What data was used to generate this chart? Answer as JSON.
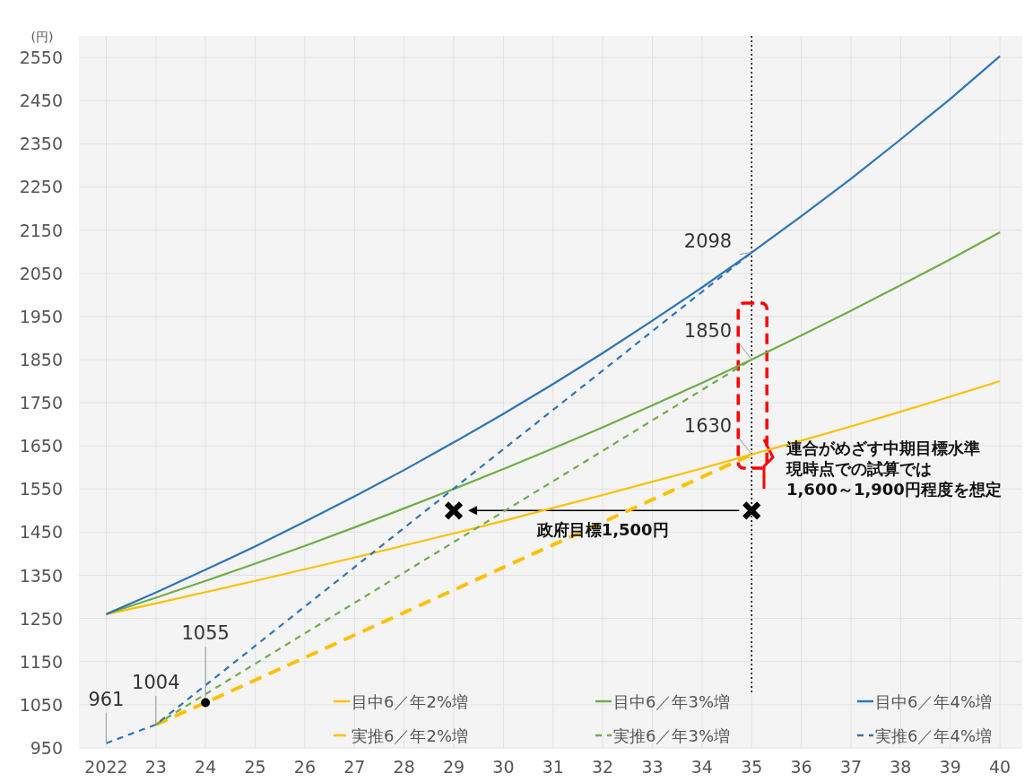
{
  "chart_data": {
    "type": "line",
    "ylabel": "(円)",
    "xlim": [
      2021.45,
      2040.45
    ],
    "ylim": [
      950,
      2600
    ],
    "xticks": [
      {
        "value": 2022,
        "label": "2022"
      },
      {
        "value": 2023,
        "label": "23"
      },
      {
        "value": 2024,
        "label": "24"
      },
      {
        "value": 2025,
        "label": "25"
      },
      {
        "value": 2026,
        "label": "26"
      },
      {
        "value": 2027,
        "label": "27"
      },
      {
        "value": 2028,
        "label": "28"
      },
      {
        "value": 2029,
        "label": "29"
      },
      {
        "value": 2030,
        "label": "30"
      },
      {
        "value": 2031,
        "label": "31"
      },
      {
        "value": 2032,
        "label": "32"
      },
      {
        "value": 2033,
        "label": "33"
      },
      {
        "value": 2034,
        "label": "34"
      },
      {
        "value": 2035,
        "label": "35"
      },
      {
        "value": 2036,
        "label": "36"
      },
      {
        "value": 2037,
        "label": "37"
      },
      {
        "value": 2038,
        "label": "38"
      },
      {
        "value": 2039,
        "label": "39"
      },
      {
        "value": 2040,
        "label": "40"
      }
    ],
    "yticks": [
      950,
      1050,
      1150,
      1250,
      1350,
      1450,
      1550,
      1650,
      1750,
      1850,
      1950,
      2050,
      2150,
      2250,
      2350,
      2450,
      2550
    ],
    "grid": true,
    "legend": "bottom right",
    "marker": "none",
    "x": [
      2022,
      2023,
      2024,
      2025,
      2026,
      2027,
      2028,
      2029,
      2030,
      2031,
      2032,
      2033,
      2034,
      2035,
      2036,
      2037,
      2038,
      2039,
      2040
    ],
    "series": [
      {
        "name": "目中6／年2%増",
        "color": "#ffc000",
        "line_style": "solid",
        "values": [
          1260,
          1285,
          1311,
          1337,
          1364,
          1391,
          1419,
          1447,
          1476,
          1506,
          1536,
          1567,
          1598,
          1630,
          1662,
          1695,
          1729,
          1764,
          1800
        ]
      },
      {
        "name": "目中6／年3%増",
        "color": "#70ad47",
        "line_style": "solid",
        "values": [
          1260,
          1298,
          1337,
          1377,
          1418,
          1461,
          1505,
          1550,
          1596,
          1644,
          1693,
          1744,
          1796,
          1850,
          1906,
          1963,
          2022,
          2082,
          2145
        ]
      },
      {
        "name": "目中6／年4%増",
        "color": "#2e75b6",
        "line_style": "solid",
        "values": [
          1260,
          1310,
          1363,
          1417,
          1474,
          1533,
          1594,
          1658,
          1724,
          1793,
          1865,
          1940,
          2017,
          2098,
          2182,
          2269,
          2360,
          2454,
          2553
        ]
      },
      {
        "name": "実推6／年2%増",
        "color": "#ffc000",
        "line_style": "dashed",
        "x": [
          2023,
          2024,
          2029,
          2035
        ],
        "values": [
          1004,
          1055,
          1316,
          1630
        ]
      },
      {
        "name": "実推6／年3%増",
        "color": "#70ad47",
        "line_style": "dashed",
        "x": [
          2023,
          2029,
          2035
        ],
        "values": [
          1004,
          1427,
          1850
        ]
      },
      {
        "name": "実推6／年4%増",
        "color": "#2e75b6",
        "line_style": "dashed",
        "x": [
          2022,
          2023,
          2029,
          2035
        ],
        "values": [
          961,
          1004,
          1551,
          2098
        ]
      },
      {
        "type": "scatter",
        "marker": "cross",
        "color": "#000000",
        "x": [
          2029,
          2035
        ],
        "values": [
          1500,
          1500
        ]
      }
    ],
    "ref_lines": [
      {
        "axis": "x",
        "value": 2035,
        "color": "#000000",
        "line_style": "dotted"
      }
    ],
    "annotations": [
      {
        "text": "961",
        "x": 2022,
        "y": 961
      },
      {
        "text": "1004",
        "x": 2023,
        "y": 1004
      },
      {
        "text": "1055",
        "x": 2024,
        "y": 1055
      },
      {
        "text": "2098",
        "x": 2035,
        "y": 2098
      },
      {
        "text": "1850",
        "x": 2035,
        "y": 1850
      },
      {
        "text": "1630",
        "x": 2035,
        "y": 1630
      },
      "政府目標1,500円",
      "連合がめざす中期目標水準",
      "現時点での試算では",
      "1,600～1,900円程度を想定"
    ]
  }
}
